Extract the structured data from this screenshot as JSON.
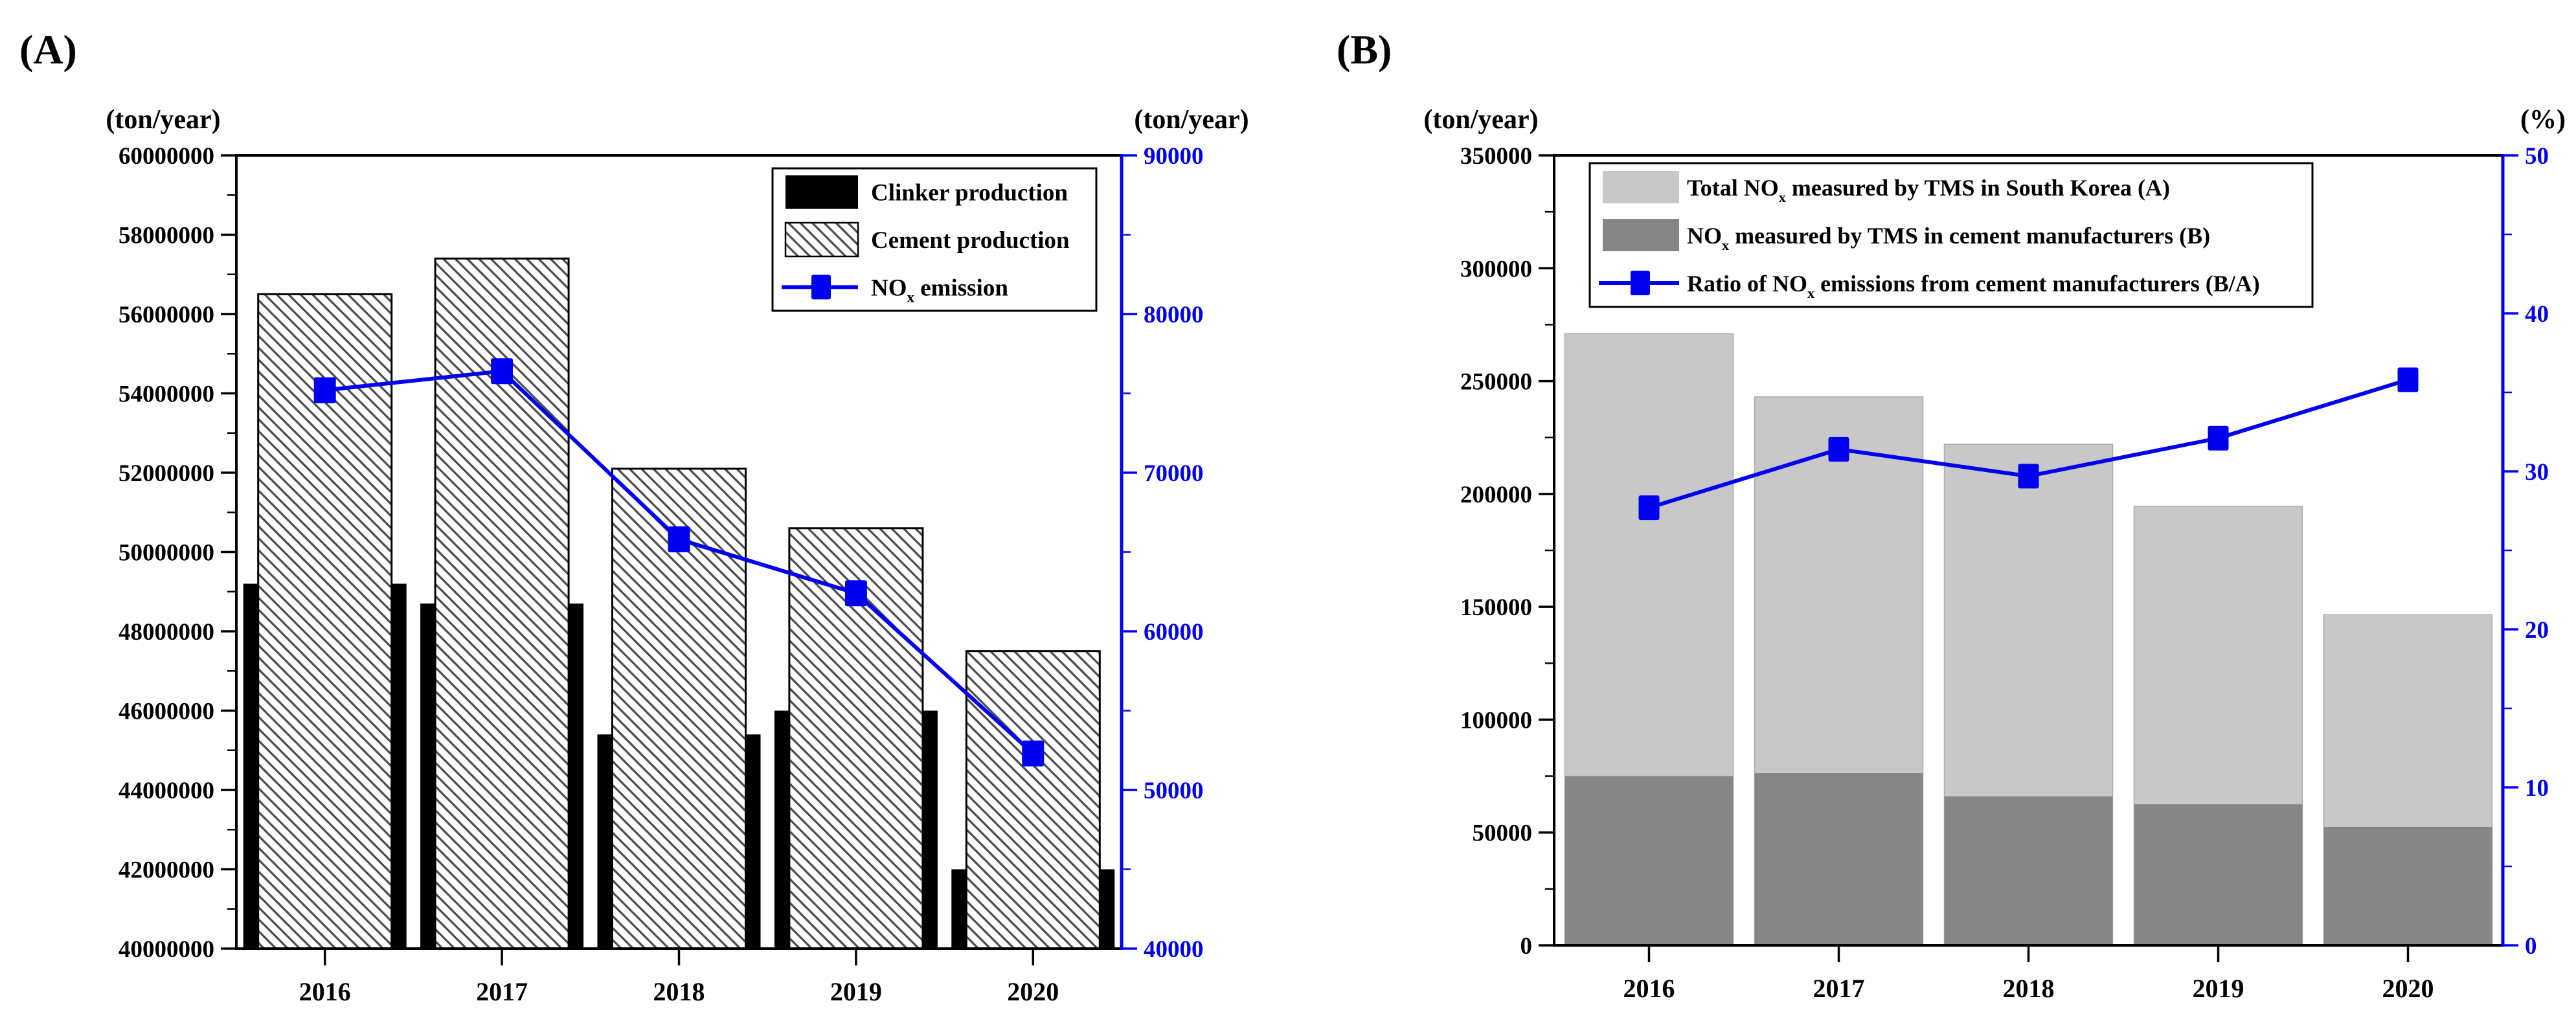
{
  "figure": {
    "panels": [
      {
        "id": "A",
        "title": "(A)",
        "left_axis_unit": "(ton/year)",
        "right_axis_unit": "(ton/year)",
        "chart_data": {
          "type": "combo",
          "categories": [
            "2016",
            "2017",
            "2018",
            "2019",
            "2020"
          ],
          "series": [
            {
              "name": "Clinker production",
              "kind": "bar",
              "axis": "left",
              "fill": "#000000",
              "values": [
                49200000,
                48700000,
                45400000,
                46000000,
                42000000
              ]
            },
            {
              "name": "Cement production",
              "kind": "bar",
              "axis": "left",
              "fill": "hatch",
              "values": [
                56500000,
                57400000,
                52100000,
                50600000,
                47500000
              ]
            },
            {
              "name": "NOx emission",
              "kind": "line",
              "axis": "right",
              "color": "#0000ee",
              "values": [
                75200,
                76400,
                65800,
                62400,
                52300
              ]
            }
          ],
          "left_axis": {
            "min": 40000000,
            "max": 60000000,
            "major_step": 2000000,
            "minor_step": 1000000,
            "color": "#000000"
          },
          "right_axis": {
            "min": 40000,
            "max": 90000,
            "major_step": 10000,
            "minor_step": 5000,
            "color": "#0000ee"
          },
          "grid": false,
          "legend_position": "top-right"
        }
      },
      {
        "id": "B",
        "title": "(B)",
        "left_axis_unit": "(ton/year)",
        "right_axis_unit": "(%)",
        "chart_data": {
          "type": "combo",
          "categories": [
            "2016",
            "2017",
            "2018",
            "2019",
            "2020"
          ],
          "series": [
            {
              "name": "Total NOx measured by TMS in South Korea (A)",
              "kind": "bar",
              "axis": "left",
              "fill": "#c8c8c8",
              "values": [
                271000,
                243000,
                222000,
                194500,
                146500
              ]
            },
            {
              "name": "NOx measured by TMS in cement manufacturers (B)",
              "kind": "bar",
              "axis": "left",
              "fill": "#868686",
              "values": [
                75000,
                76300,
                66000,
                62500,
                52500
              ]
            },
            {
              "name": "Ratio of NOx emissions from cement manufacturers (B/A)",
              "kind": "line",
              "axis": "right",
              "color": "#0000ee",
              "values": [
                27.7,
                31.4,
                29.7,
                32.1,
                35.8
              ]
            }
          ],
          "left_axis": {
            "min": 0,
            "max": 350000,
            "major_step": 50000,
            "minor_step": 25000,
            "color": "#000000"
          },
          "right_axis": {
            "min": 0,
            "max": 50,
            "major_step": 10,
            "minor_step": 5,
            "color": "#0000ee"
          },
          "grid": false,
          "legend_position": "top-left"
        }
      }
    ]
  }
}
